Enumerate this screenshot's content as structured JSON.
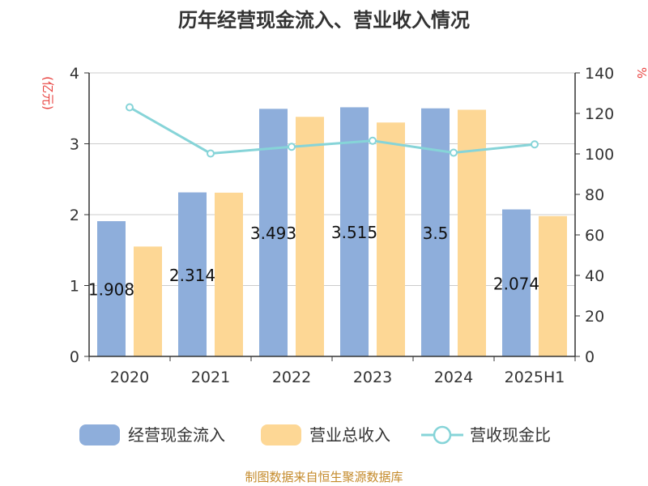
{
  "title": "历年经营现金流入、营业收入情况",
  "source": "制图数据来自恒生聚源数据库",
  "y_left_unit": "(亿元)",
  "y_right_unit": "%",
  "chart_data": {
    "type": "bar",
    "categories": [
      "2020",
      "2021",
      "2022",
      "2023",
      "2024",
      "2025H1"
    ],
    "series": [
      {
        "name": "经营现金流入",
        "type": "bar",
        "axis": "left",
        "color": "#8eaedb",
        "values": [
          1.908,
          2.314,
          3.493,
          3.515,
          3.5,
          2.074
        ],
        "labels": [
          "1.908",
          "2.314",
          "3.493",
          "3.515",
          "3.5",
          "2.074"
        ]
      },
      {
        "name": "营业总收入",
        "type": "bar",
        "axis": "left",
        "color": "#fdd795",
        "values": [
          1.55,
          2.31,
          3.38,
          3.3,
          3.48,
          1.98
        ]
      },
      {
        "name": "营收现金比",
        "type": "line",
        "axis": "right",
        "color": "#86d4d8",
        "values": [
          123,
          100.2,
          103.5,
          106.5,
          100.6,
          104.7
        ]
      }
    ],
    "ylim_left": [
      0,
      4
    ],
    "yticks_left": [
      0,
      1,
      2,
      3,
      4
    ],
    "ylim_right": [
      0,
      140
    ],
    "yticks_right": [
      0,
      20,
      40,
      60,
      80,
      100,
      120,
      140
    ],
    "grid": true,
    "legend_position": "bottom"
  }
}
